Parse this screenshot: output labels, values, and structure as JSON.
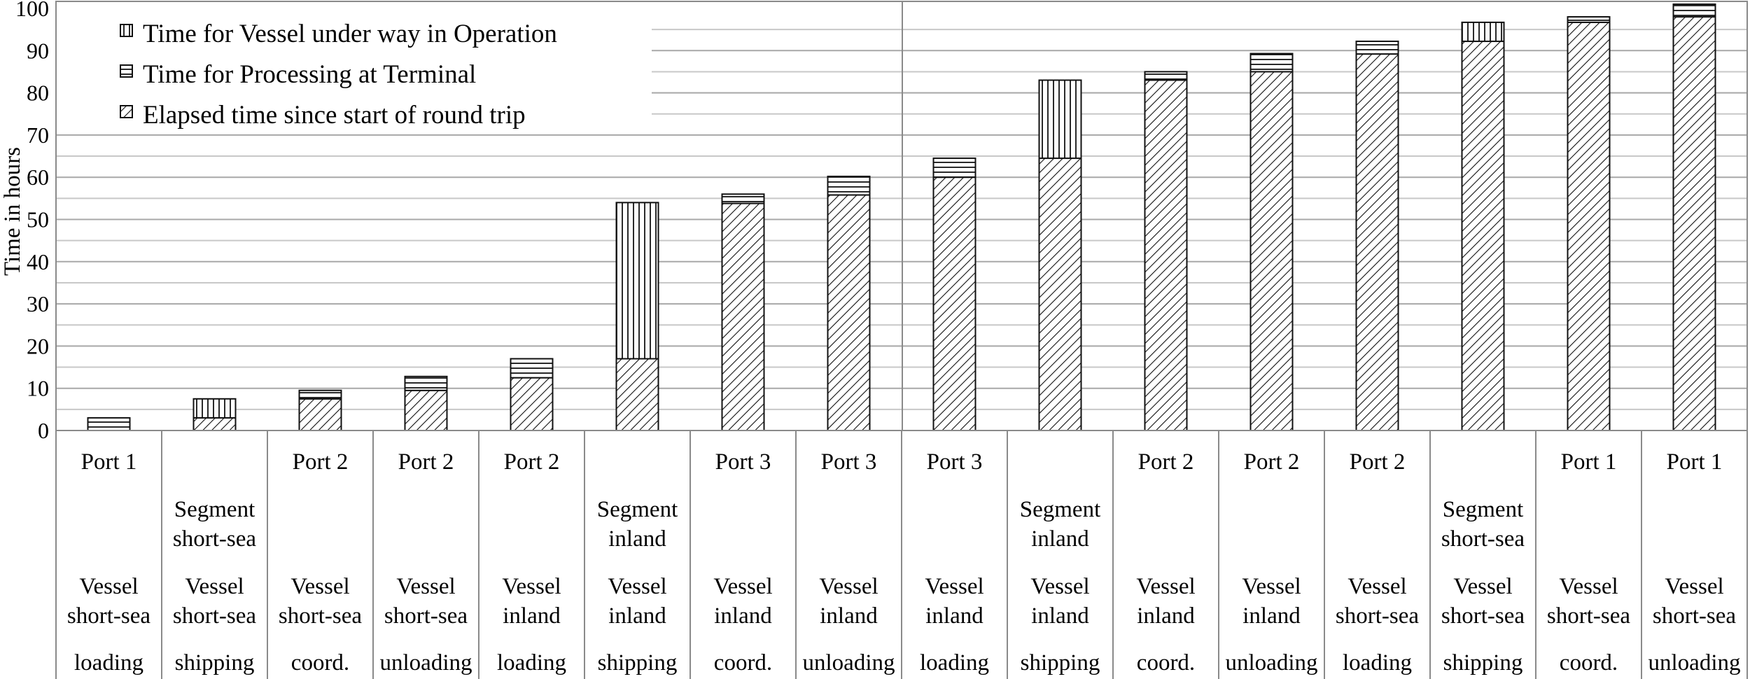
{
  "chart_data": {
    "type": "bar",
    "stacked": true,
    "ylabel": "Time in hours",
    "ylim": [
      0,
      100
    ],
    "y_ticks": [
      0,
      10,
      20,
      30,
      40,
      50,
      60,
      70,
      80,
      90,
      100
    ],
    "grid": "horizontal minor gridlines every 5 hours",
    "legend_position": "top-left",
    "categories": [
      {
        "location": "Port 1",
        "segment": "",
        "vessel": [
          "Vessel",
          "short-sea"
        ],
        "activity": "loading"
      },
      {
        "location": "",
        "segment": [
          "Segment",
          "short-sea"
        ],
        "vessel": [
          "Vessel",
          "short-sea"
        ],
        "activity": "shipping"
      },
      {
        "location": "Port 2",
        "segment": "",
        "vessel": [
          "Vessel",
          "short-sea"
        ],
        "activity": "coord."
      },
      {
        "location": "Port 2",
        "segment": "",
        "vessel": [
          "Vessel",
          "short-sea"
        ],
        "activity": "unloading"
      },
      {
        "location": "Port 2",
        "segment": "",
        "vessel": [
          "Vessel",
          "inland"
        ],
        "activity": "loading"
      },
      {
        "location": "",
        "segment": [
          "Segment",
          "inland"
        ],
        "vessel": [
          "Vessel",
          "inland"
        ],
        "activity": "shipping"
      },
      {
        "location": "Port 3",
        "segment": "",
        "vessel": [
          "Vessel",
          "inland"
        ],
        "activity": "coord."
      },
      {
        "location": "Port 3",
        "segment": "",
        "vessel": [
          "Vessel",
          "inland"
        ],
        "activity": "unloading"
      },
      {
        "location": "Port 3",
        "segment": "",
        "vessel": [
          "Vessel",
          "inland"
        ],
        "activity": "loading"
      },
      {
        "location": "",
        "segment": [
          "Segment",
          "inland"
        ],
        "vessel": [
          "Vessel",
          "inland"
        ],
        "activity": "shipping"
      },
      {
        "location": "Port 2",
        "segment": "",
        "vessel": [
          "Vessel",
          "inland"
        ],
        "activity": "coord."
      },
      {
        "location": "Port 2",
        "segment": "",
        "vessel": [
          "Vessel",
          "inland"
        ],
        "activity": "unloading"
      },
      {
        "location": "Port 2",
        "segment": "",
        "vessel": [
          "Vessel",
          "short-sea"
        ],
        "activity": "loading"
      },
      {
        "location": "",
        "segment": [
          "Segment",
          "short-sea"
        ],
        "vessel": [
          "Vessel",
          "short-sea"
        ],
        "activity": "shipping"
      },
      {
        "location": "Port 1",
        "segment": "",
        "vessel": [
          "Vessel",
          "short-sea"
        ],
        "activity": "coord."
      },
      {
        "location": "Port 1",
        "segment": "",
        "vessel": [
          "Vessel",
          "short-sea"
        ],
        "activity": "unloading"
      }
    ],
    "series": [
      {
        "name": "Elapsed time since start of round trip",
        "pattern": "diagonal",
        "values": [
          0,
          3,
          7.5,
          9.5,
          12.5,
          17,
          53.8,
          55.8,
          60,
          64.5,
          83,
          85,
          89.2,
          92.2,
          96.7,
          98
        ]
      },
      {
        "name": "Time for Processing at Terminal",
        "pattern": "horizontal",
        "values": [
          3,
          0,
          2,
          3.3,
          4.5,
          0,
          2.2,
          4.4,
          4.5,
          0,
          2,
          4.3,
          3,
          0,
          1.3,
          3
        ]
      },
      {
        "name": "Time for Vessel under way in Operation",
        "pattern": "vertical",
        "values": [
          0,
          4.5,
          0,
          0,
          0,
          37,
          0,
          0,
          0,
          18.5,
          0,
          0,
          0,
          4.5,
          0,
          0
        ]
      }
    ],
    "legend_order": [
      2,
      1,
      0
    ]
  }
}
